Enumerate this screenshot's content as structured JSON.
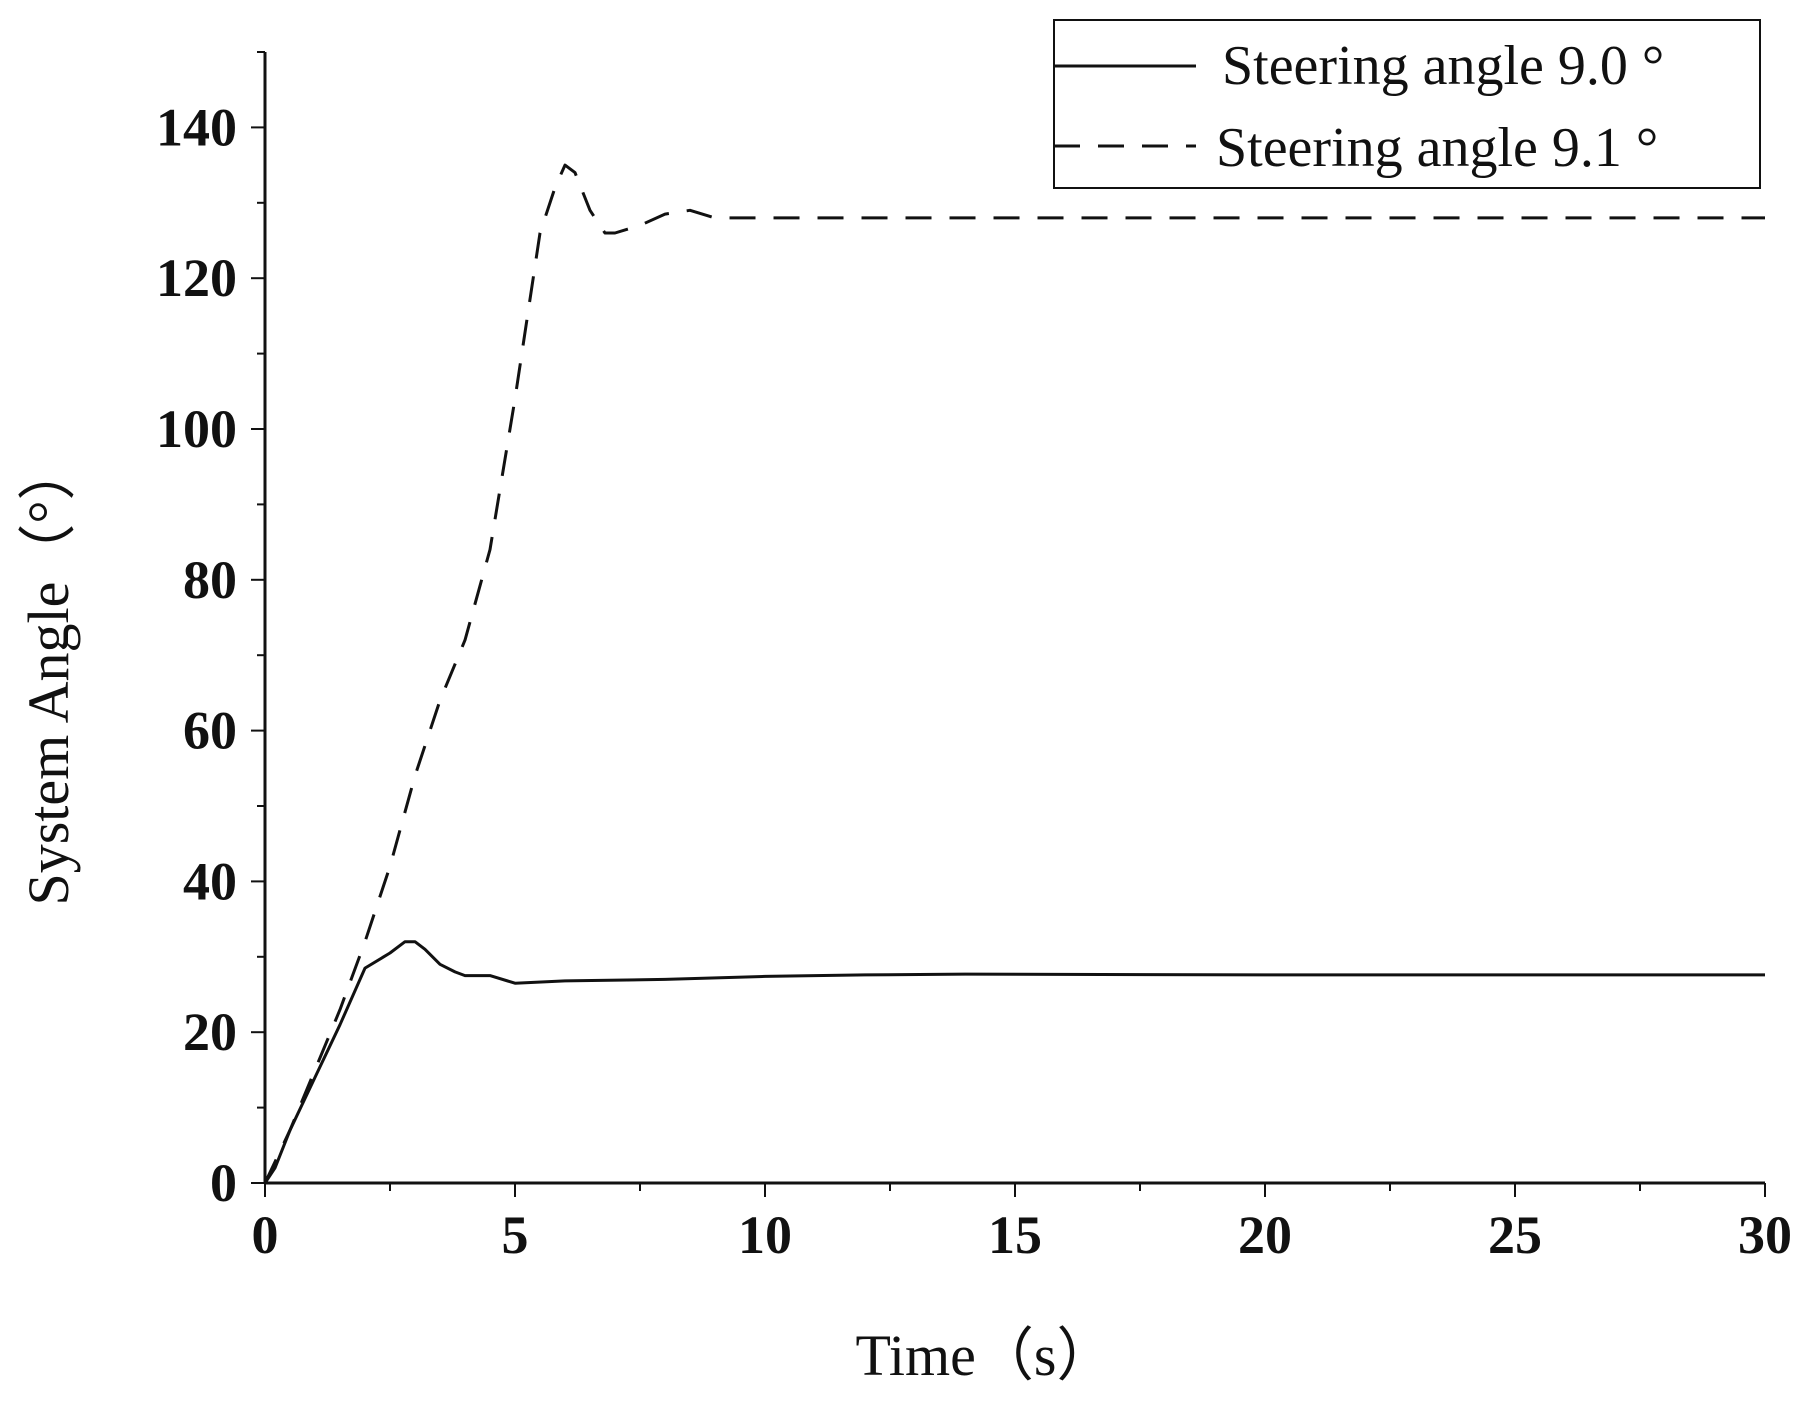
{
  "chart_data": {
    "type": "line",
    "title": "",
    "xlabel": "Time（s）",
    "ylabel": "System Angle（°）",
    "xlim": [
      0,
      30
    ],
    "ylim": [
      0,
      150
    ],
    "xticks": [
      0,
      5,
      10,
      15,
      20,
      25,
      30
    ],
    "yticks": [
      0,
      20,
      40,
      60,
      80,
      100,
      120,
      140
    ],
    "grid": false,
    "legend_position": "top-right",
    "series": [
      {
        "name": "Steering angle 9.0 °",
        "style": "solid",
        "color": "#111111",
        "x": [
          0,
          0.2,
          0.5,
          1.0,
          1.5,
          2.0,
          2.5,
          2.8,
          3.0,
          3.2,
          3.5,
          3.8,
          4.0,
          4.5,
          5.0,
          6.0,
          8.0,
          10.0,
          12.0,
          14.0,
          20.0,
          25.0,
          30.0
        ],
        "y": [
          0,
          2,
          7,
          14,
          21,
          28.5,
          30.5,
          32,
          32,
          31,
          29,
          28,
          27.5,
          27.5,
          26.5,
          26.8,
          27,
          27.4,
          27.6,
          27.7,
          27.6,
          27.6,
          27.6
        ]
      },
      {
        "name": "Steering angle 9.1 °",
        "style": "dashed",
        "color": "#111111",
        "x": [
          0,
          0.5,
          1.0,
          1.5,
          2.0,
          2.5,
          3.0,
          3.5,
          4.0,
          4.5,
          5.0,
          5.5,
          5.8,
          6.0,
          6.2,
          6.5,
          6.8,
          7.0,
          7.5,
          8.0,
          8.5,
          9.0,
          10.0,
          15.0,
          20.0,
          25.0,
          30.0
        ],
        "y": [
          0,
          7,
          15,
          23,
          32,
          42,
          54,
          64,
          72,
          84,
          104,
          126,
          132,
          135,
          134,
          129,
          126,
          126,
          127,
          128.5,
          129,
          128,
          128,
          128,
          128,
          128,
          128
        ]
      }
    ]
  }
}
